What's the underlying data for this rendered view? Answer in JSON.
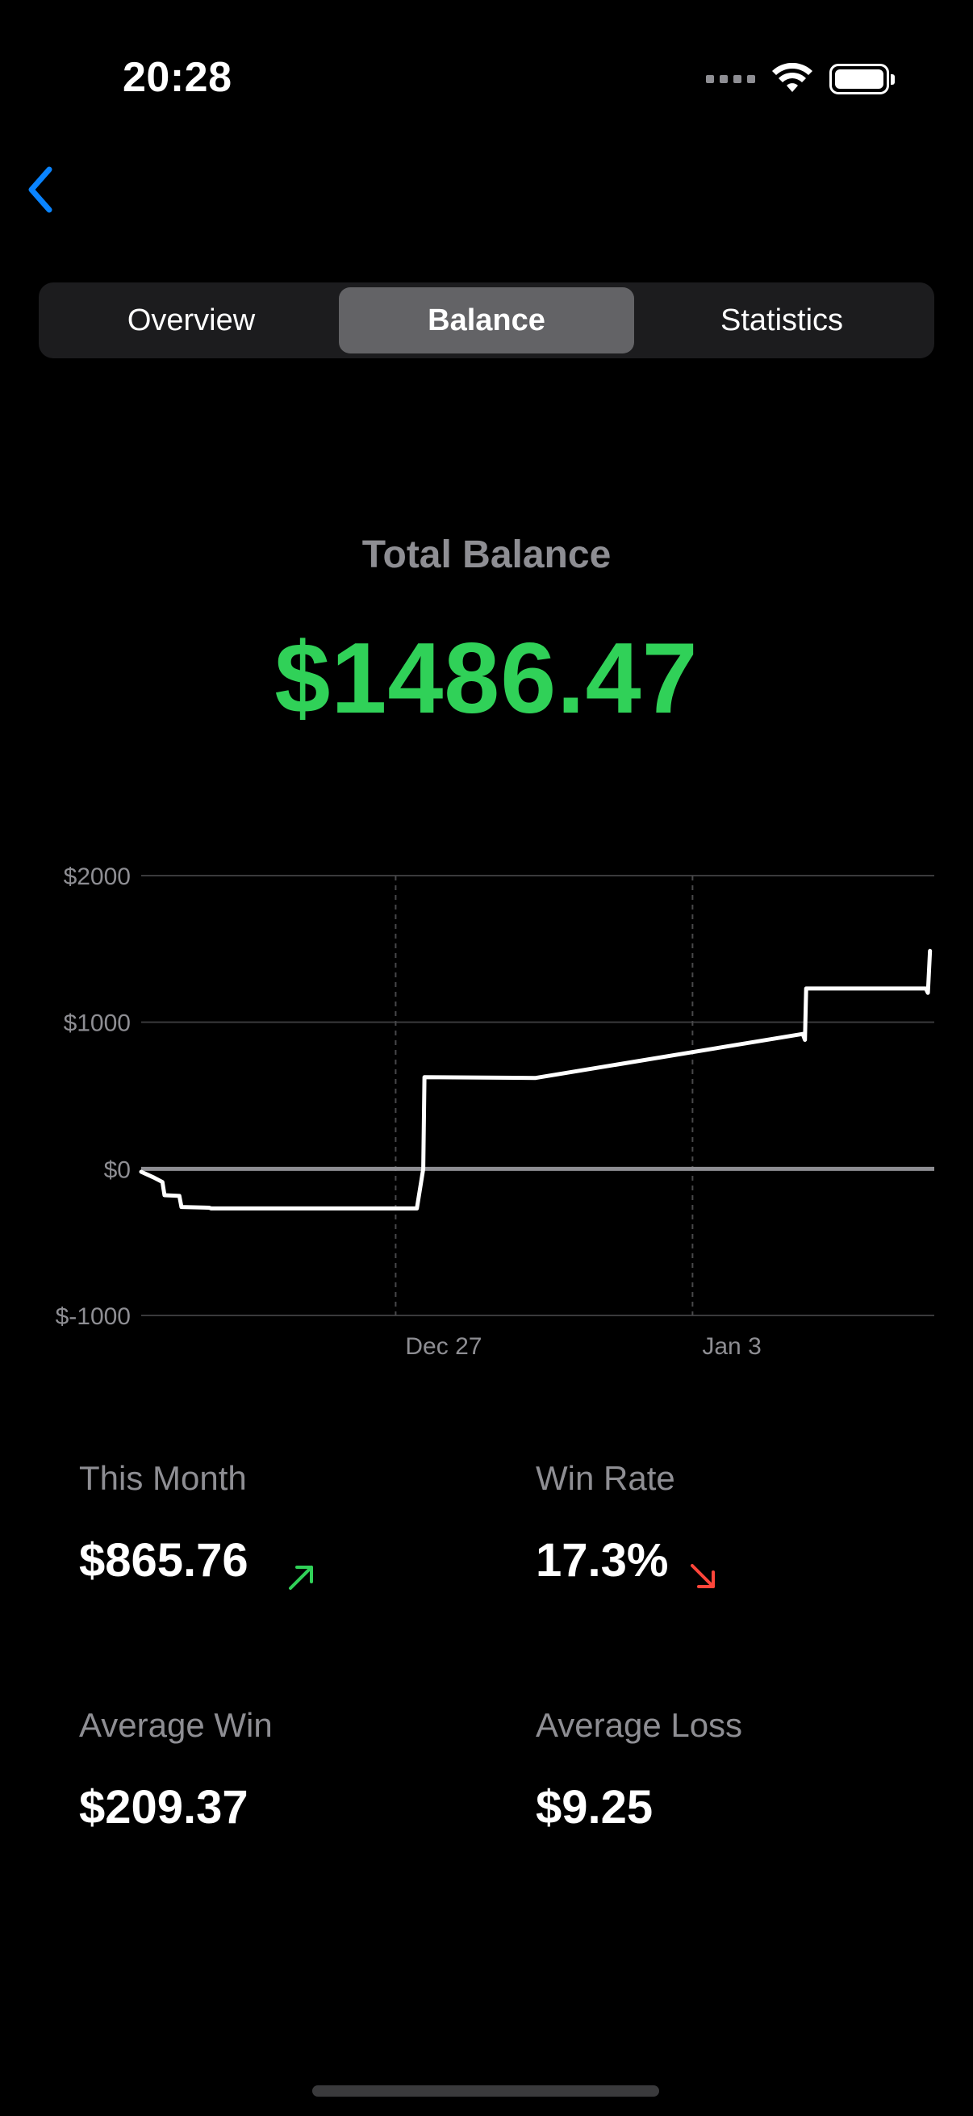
{
  "status_bar": {
    "time": "20:28",
    "icons": [
      "signal-dots-icon",
      "wifi-icon",
      "battery-icon"
    ]
  },
  "nav": {
    "back_icon": "chevron-left-icon",
    "accent_color": "#0a84ff"
  },
  "tabs": [
    {
      "label": "Overview",
      "active": false
    },
    {
      "label": "Balance",
      "active": true
    },
    {
      "label": "Statistics",
      "active": false
    }
  ],
  "balance": {
    "label": "Total Balance",
    "value": "$1486.47",
    "color": "#30d158"
  },
  "chart_data": {
    "type": "line",
    "y_ticks": [
      {
        "value": 2000,
        "label": "$2000"
      },
      {
        "value": 1000,
        "label": "$1000"
      },
      {
        "value": 0,
        "label": "$0"
      },
      {
        "value": -1000,
        "label": "$-1000"
      }
    ],
    "x_ticks": [
      {
        "value": 6,
        "label": "Dec 27"
      },
      {
        "value": 13,
        "label": "Jan 3"
      }
    ],
    "ylim": [
      -1000,
      2000
    ],
    "xlim": [
      0,
      18.7
    ],
    "grid": true,
    "zero_line": true,
    "series": [
      {
        "color": "#ffffff",
        "points": [
          [
            0,
            -20
          ],
          [
            0.3,
            -60
          ],
          [
            0.5,
            -90
          ],
          [
            0.55,
            -180
          ],
          [
            0.9,
            -185
          ],
          [
            0.95,
            -260
          ],
          [
            1.6,
            -265
          ],
          [
            1.65,
            -270
          ],
          [
            6.5,
            -270
          ],
          [
            6.65,
            0
          ],
          [
            6.68,
            625
          ],
          [
            9.3,
            620
          ],
          [
            15.6,
            920
          ],
          [
            15.65,
            880
          ],
          [
            15.68,
            1230
          ],
          [
            18.5,
            1230
          ],
          [
            18.55,
            1200
          ],
          [
            18.6,
            1486.47
          ]
        ]
      }
    ]
  },
  "stats": [
    {
      "label": "This Month",
      "value": "$865.76",
      "trend": "up",
      "trend_color": "#30d158"
    },
    {
      "label": "Win Rate",
      "value": "17.3%",
      "trend": "down",
      "trend_color": "#ff453a"
    },
    {
      "label": "Average Win",
      "value": "$209.37"
    },
    {
      "label": "Average Loss",
      "value": "$9.25"
    }
  ]
}
